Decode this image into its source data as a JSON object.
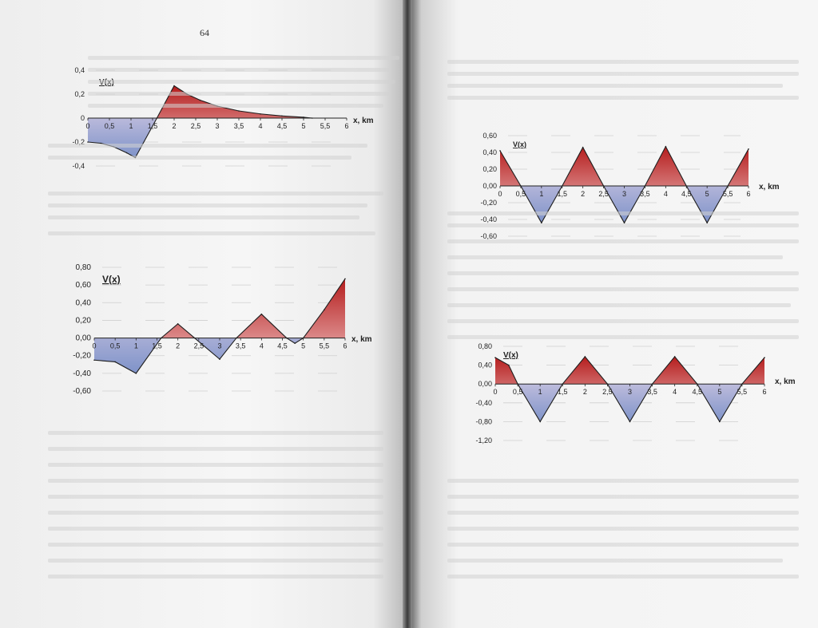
{
  "page": {
    "number": "64"
  },
  "chart_data": [
    {
      "type": "area",
      "ylabel": "V(x)",
      "xlabel": "x, km",
      "x_ticks": [
        "0",
        "0,5",
        "1",
        "1,5",
        "2",
        "2,5",
        "3",
        "3,5",
        "4",
        "4,5",
        "5",
        "5,5",
        "6"
      ],
      "y_ticks": [
        "0,4",
        "0,2",
        "0",
        "-0,2",
        "-0,4"
      ],
      "ylim": [
        -0.4,
        0.4
      ],
      "xlim": [
        0,
        6
      ],
      "values": [
        {
          "x": 0,
          "y": -0.2
        },
        {
          "x": 0.3,
          "y": -0.21
        },
        {
          "x": 0.6,
          "y": -0.24
        },
        {
          "x": 0.9,
          "y": -0.29
        },
        {
          "x": 1.1,
          "y": -0.33
        },
        {
          "x": 1.6,
          "y": 0.0
        },
        {
          "x": 2.0,
          "y": 0.27
        },
        {
          "x": 2.3,
          "y": 0.2
        },
        {
          "x": 2.6,
          "y": 0.15
        },
        {
          "x": 3.0,
          "y": 0.1
        },
        {
          "x": 3.5,
          "y": 0.06
        },
        {
          "x": 4.0,
          "y": 0.035
        },
        {
          "x": 4.5,
          "y": 0.018
        },
        {
          "x": 5.0,
          "y": 0.007
        },
        {
          "x": 5.2,
          "y": 0.0
        }
      ]
    },
    {
      "type": "area",
      "ylabel": "V(x)",
      "xlabel": "x, km",
      "x_ticks": [
        "0",
        "0,5",
        "1",
        "1,5",
        "2",
        "2,5",
        "3",
        "3,5",
        "4",
        "4,5",
        "5",
        "5,5",
        "6"
      ],
      "y_ticks": [
        "0,80",
        "0,60",
        "0,40",
        "0,20",
        "0,00",
        "-0,20",
        "-0,40",
        "-0,60"
      ],
      "ylim": [
        -0.6,
        0.8
      ],
      "xlim": [
        0,
        6
      ],
      "values": [
        {
          "x": 0,
          "y": -0.25
        },
        {
          "x": 0.5,
          "y": -0.27
        },
        {
          "x": 1.0,
          "y": -0.4
        },
        {
          "x": 1.6,
          "y": 0.0
        },
        {
          "x": 2.0,
          "y": 0.16
        },
        {
          "x": 2.4,
          "y": 0.0
        },
        {
          "x": 3.0,
          "y": -0.24
        },
        {
          "x": 3.4,
          "y": 0.0
        },
        {
          "x": 4.0,
          "y": 0.27
        },
        {
          "x": 4.6,
          "y": 0.0
        },
        {
          "x": 4.8,
          "y": -0.06
        },
        {
          "x": 5.0,
          "y": 0.0
        },
        {
          "x": 5.5,
          "y": 0.32
        },
        {
          "x": 6.0,
          "y": 0.67
        }
      ]
    },
    {
      "type": "area",
      "ylabel": "V(x)",
      "xlabel": "x, km",
      "x_ticks": [
        "0",
        "0,5",
        "1",
        "1,5",
        "2",
        "2,5",
        "3",
        "3,5",
        "4",
        "4,5",
        "5",
        "5,5",
        "6"
      ],
      "y_ticks": [
        "0,60",
        "0,40",
        "0,20",
        "0,00",
        "-0,20",
        "-0,40",
        "-0,60"
      ],
      "ylim": [
        -0.6,
        0.6
      ],
      "xlim": [
        0,
        6
      ],
      "values": [
        {
          "x": 0,
          "y": 0.42
        },
        {
          "x": 0.5,
          "y": 0.0
        },
        {
          "x": 1.0,
          "y": -0.44
        },
        {
          "x": 1.5,
          "y": 0.0
        },
        {
          "x": 2.0,
          "y": 0.46
        },
        {
          "x": 2.5,
          "y": 0.0
        },
        {
          "x": 3.0,
          "y": -0.44
        },
        {
          "x": 3.5,
          "y": 0.0
        },
        {
          "x": 4.0,
          "y": 0.47
        },
        {
          "x": 4.5,
          "y": 0.0
        },
        {
          "x": 5.0,
          "y": -0.44
        },
        {
          "x": 5.5,
          "y": 0.0
        },
        {
          "x": 6.0,
          "y": 0.44
        }
      ]
    },
    {
      "type": "area",
      "ylabel": "V(x)",
      "xlabel": "x, km",
      "x_ticks": [
        "0",
        "0,5",
        "1",
        "1,5",
        "2",
        "2,5",
        "3",
        "3,5",
        "4",
        "4,5",
        "5",
        "5,5",
        "6"
      ],
      "y_ticks": [
        "0,80",
        "0,40",
        "0,00",
        "-0,40",
        "-0,80",
        "-1,20"
      ],
      "ylim": [
        -1.2,
        0.8
      ],
      "xlim": [
        0,
        6
      ],
      "values": [
        {
          "x": 0,
          "y": 0.56
        },
        {
          "x": 0.3,
          "y": 0.4
        },
        {
          "x": 0.5,
          "y": 0.0
        },
        {
          "x": 1.0,
          "y": -0.8
        },
        {
          "x": 1.5,
          "y": 0.0
        },
        {
          "x": 2.0,
          "y": 0.58
        },
        {
          "x": 2.5,
          "y": 0.0
        },
        {
          "x": 3.0,
          "y": -0.8
        },
        {
          "x": 3.5,
          "y": 0.0
        },
        {
          "x": 4.0,
          "y": 0.58
        },
        {
          "x": 4.5,
          "y": 0.0
        },
        {
          "x": 5.0,
          "y": -0.8
        },
        {
          "x": 5.5,
          "y": 0.0
        },
        {
          "x": 6.0,
          "y": 0.56
        }
      ]
    }
  ]
}
